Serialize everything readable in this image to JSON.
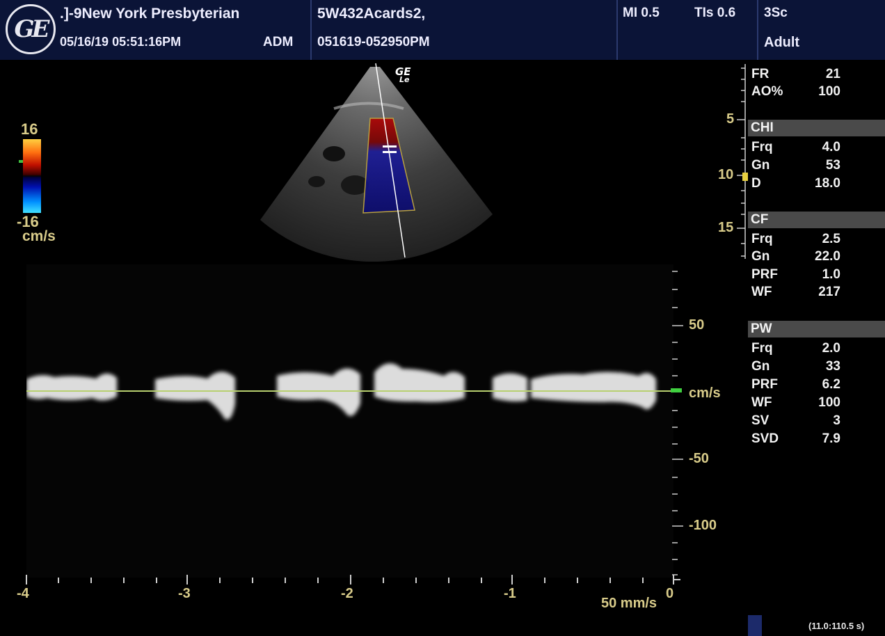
{
  "header": {
    "logo_text": "GE",
    "institution": ".]-9New York Presbyterian",
    "datetime": "05/16/19 05:51:16PM",
    "operator": "ADM",
    "patient_id": "5W432Acards2,",
    "exam_id": "051619-052950PM",
    "mi": "MI 0.5",
    "tis": "TIs 0.6",
    "probe": "3Sc",
    "preset": "Adult"
  },
  "image": {
    "watermark_line1": "GE",
    "watermark_line2": "Le"
  },
  "color_scale": {
    "max_label": "16",
    "min_label": "-16",
    "unit": "cm/s"
  },
  "depth_scale": {
    "labels": [
      "5",
      "10",
      "15"
    ]
  },
  "params": {
    "top": [
      {
        "label": "FR",
        "value": "21"
      },
      {
        "label": "AO%",
        "value": "100"
      }
    ],
    "chi": {
      "title": "CHI",
      "rows": [
        {
          "label": "Frq",
          "value": "4.0"
        },
        {
          "label": "Gn",
          "value": "53"
        },
        {
          "label": "D",
          "value": "18.0"
        }
      ]
    },
    "cf": {
      "title": "CF",
      "rows": [
        {
          "label": "Frq",
          "value": "2.5"
        },
        {
          "label": "Gn",
          "value": "22.0"
        },
        {
          "label": "PRF",
          "value": "1.0"
        },
        {
          "label": "WF",
          "value": "217"
        }
      ]
    },
    "pw": {
      "title": "PW",
      "rows": [
        {
          "label": "Frq",
          "value": "2.0"
        },
        {
          "label": "Gn",
          "value": "33"
        },
        {
          "label": "PRF",
          "value": "6.2"
        },
        {
          "label": "WF",
          "value": "100"
        },
        {
          "label": "SV",
          "value": "3"
        },
        {
          "label": "SVD",
          "value": "7.9"
        }
      ]
    }
  },
  "doppler": {
    "velocity_unit": "cm/s",
    "velocity_labels": [
      "50",
      "-50",
      "-100"
    ],
    "time_labels": [
      "-4",
      "-3",
      "-2",
      "-1",
      "0"
    ],
    "sweep_speed": "50 mm/s"
  },
  "footer": {
    "cine_info": "(11.0:110.5 s)"
  }
}
